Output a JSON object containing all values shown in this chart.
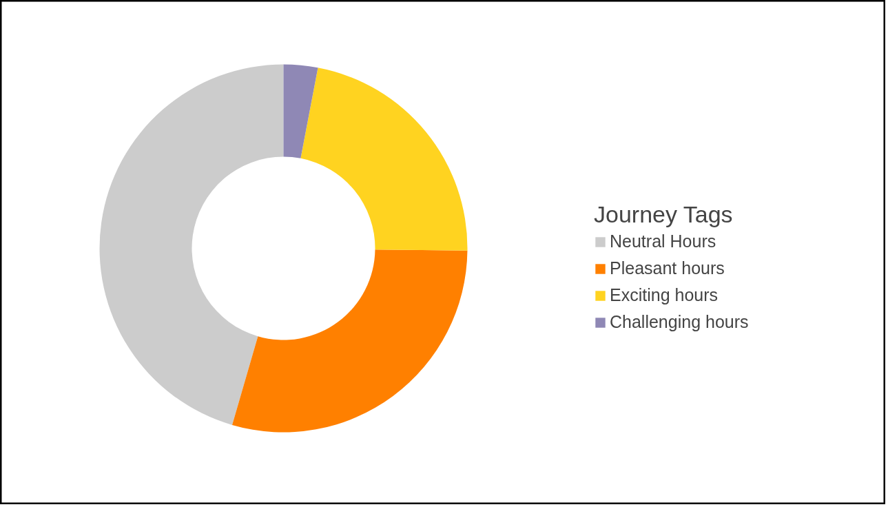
{
  "chart_data": {
    "type": "donut",
    "legend_title": "Journey Tags",
    "categories": [
      "Neutral Hours",
      "Pleasant hours",
      "Exciting hours",
      "Challenging hours"
    ],
    "values": [
      45.5,
      29.3,
      22.2,
      3.0
    ],
    "colors": [
      "#cccccc",
      "#ff8000",
      "#ffd320",
      "#8f88b5"
    ],
    "legend": "right"
  }
}
